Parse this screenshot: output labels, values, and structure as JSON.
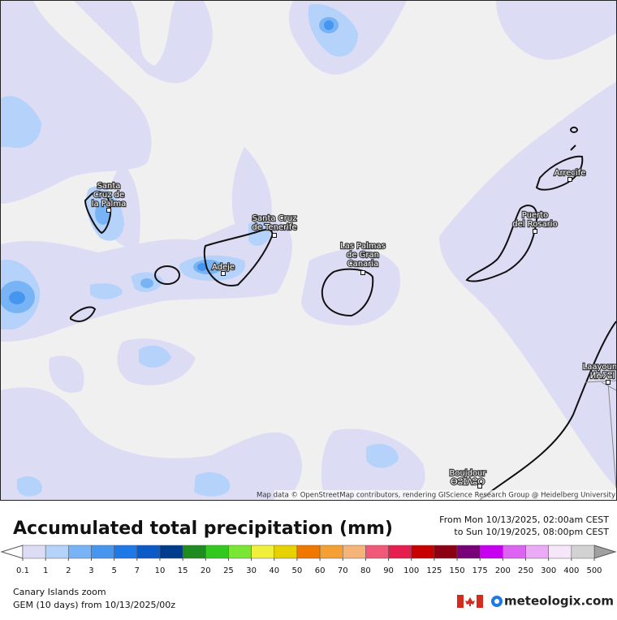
{
  "map": {
    "labels": [
      {
        "lines": [
          "Santa",
          "Cruz de",
          "la Palma"
        ]
      },
      {
        "lines": [
          "Santa Cruz",
          "de Tenerife"
        ]
      },
      {
        "lines": [
          "Adeje"
        ]
      },
      {
        "lines": [
          "Las Palmas",
          "de Gran",
          "Canaria"
        ]
      },
      {
        "lines": [
          "Puerto",
          "del Rosario"
        ]
      },
      {
        "lines": [
          "Arrecife"
        ]
      },
      {
        "lines": [
          "Laayoune",
          "ⵍⵄⵢⵓⵏ"
        ]
      },
      {
        "lines": [
          "Boujdour",
          "ⴱⵓⵊⴷⵓⵔ"
        ]
      }
    ],
    "attribution": "Map data © OpenStreetMap contributors, rendering GIScience Research Group @ Heidelberg University"
  },
  "legend": {
    "title": "Accumulated total precipitation (mm)",
    "period": [
      "From Mon 10/13/2025, 02:00am CEST",
      "to Sun 10/19/2025, 08:00pm CEST"
    ],
    "ticks": [
      0.1,
      1,
      2,
      3,
      5,
      7,
      10,
      15,
      20,
      25,
      30,
      40,
      50,
      60,
      70,
      80,
      90,
      100,
      125,
      150,
      175,
      200,
      250,
      300,
      400,
      500
    ],
    "colors": [
      "#dcdcf5",
      "#b4d2fa",
      "#78b4f5",
      "#4696f0",
      "#1e78e6",
      "#0a5ac8",
      "#003c8c",
      "#1e8c1e",
      "#32c81e",
      "#78e632",
      "#f0f03c",
      "#e6d200",
      "#f07800",
      "#f5a032",
      "#f5b478",
      "#f05a78",
      "#e61e50",
      "#c80000",
      "#8c0014",
      "#780078",
      "#c800f0",
      "#dc64f0",
      "#ebaaf5",
      "#f5e6fa",
      "#d2d2d2"
    ],
    "under_color": "#ffffff",
    "over_color": "#a0a0a0"
  },
  "footer": {
    "region": "Canary Islands zoom",
    "model": "GEM (10 days) from  10/13/2025/00z",
    "brand": "meteologix.com"
  }
}
